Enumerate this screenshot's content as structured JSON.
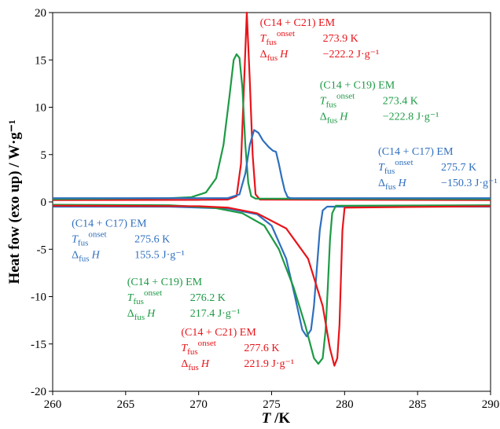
{
  "chart_data": {
    "type": "line",
    "xlabel": "T /K",
    "ylabel": "Heat fow (exo up) / W·g⁻¹",
    "xlim": [
      260,
      290
    ],
    "ylim": [
      -20,
      20
    ],
    "xticks": [
      260,
      265,
      270,
      275,
      280,
      285,
      290
    ],
    "yticks": [
      -20,
      -15,
      -10,
      -5,
      0,
      5,
      10,
      15,
      20
    ],
    "grid": false,
    "series": [
      {
        "id": "c14c21-cool",
        "color": "#e8141a",
        "points": [
          [
            260,
            0.2
          ],
          [
            270,
            0.22
          ],
          [
            272,
            0.25
          ],
          [
            272.6,
            0.6
          ],
          [
            272.9,
            4
          ],
          [
            273.1,
            12
          ],
          [
            273.3,
            20
          ],
          [
            273.5,
            13
          ],
          [
            273.7,
            5
          ],
          [
            273.9,
            0.8
          ],
          [
            274.2,
            0.25
          ],
          [
            290,
            0.2
          ]
        ]
      },
      {
        "id": "c14c19-cool",
        "color": "#1d9a45",
        "points": [
          [
            260,
            0.3
          ],
          [
            268,
            0.4
          ],
          [
            269.5,
            0.5
          ],
          [
            270.5,
            1.0
          ],
          [
            271.2,
            2.5
          ],
          [
            271.7,
            6
          ],
          [
            272.1,
            11
          ],
          [
            272.4,
            15
          ],
          [
            272.6,
            15.6
          ],
          [
            272.8,
            15.2
          ],
          [
            273,
            12
          ],
          [
            273.2,
            6
          ],
          [
            273.4,
            2
          ],
          [
            273.6,
            0.6
          ],
          [
            273.9,
            0.35
          ],
          [
            290,
            0.3
          ]
        ]
      },
      {
        "id": "c14c17-cool",
        "color": "#2f6fbe",
        "points": [
          [
            260,
            0.4
          ],
          [
            272,
            0.4
          ],
          [
            272.8,
            0.8
          ],
          [
            273.2,
            3
          ],
          [
            273.5,
            6
          ],
          [
            273.8,
            7.6
          ],
          [
            274.1,
            7.3
          ],
          [
            274.4,
            6.5
          ],
          [
            274.8,
            5.8
          ],
          [
            275.1,
            5.4
          ],
          [
            275.3,
            5.3
          ],
          [
            275.5,
            4
          ],
          [
            275.7,
            2.5
          ],
          [
            275.9,
            1.2
          ],
          [
            276.1,
            0.5
          ],
          [
            276.3,
            0.4
          ],
          [
            290,
            0.4
          ]
        ]
      },
      {
        "id": "c14c17-heat",
        "color": "#2f6fbe",
        "points": [
          [
            260,
            -0.5
          ],
          [
            268,
            -0.5
          ],
          [
            272,
            -0.7
          ],
          [
            274,
            -1.3
          ],
          [
            275,
            -2.5
          ],
          [
            276,
            -6
          ],
          [
            276.6,
            -10
          ],
          [
            277.1,
            -13.5
          ],
          [
            277.4,
            -14.2
          ],
          [
            277.7,
            -13.5
          ],
          [
            277.9,
            -11
          ],
          [
            278.1,
            -7
          ],
          [
            278.3,
            -3
          ],
          [
            278.5,
            -0.9
          ],
          [
            278.8,
            -0.5
          ],
          [
            290,
            -0.5
          ]
        ]
      },
      {
        "id": "c14c19-heat",
        "color": "#1d9a45",
        "points": [
          [
            260,
            -0.3
          ],
          [
            268,
            -0.35
          ],
          [
            271,
            -0.6
          ],
          [
            273,
            -1.2
          ],
          [
            274.5,
            -2.5
          ],
          [
            275.5,
            -5
          ],
          [
            276.5,
            -9
          ],
          [
            277.3,
            -13
          ],
          [
            277.9,
            -16.5
          ],
          [
            278.2,
            -17.1
          ],
          [
            278.5,
            -16.5
          ],
          [
            278.7,
            -13.5
          ],
          [
            278.85,
            -9
          ],
          [
            279,
            -4
          ],
          [
            279.15,
            -1.2
          ],
          [
            279.4,
            -0.4
          ],
          [
            290,
            -0.35
          ]
        ]
      },
      {
        "id": "c14c21-heat",
        "color": "#e8141a",
        "points": [
          [
            260,
            -0.4
          ],
          [
            270,
            -0.45
          ],
          [
            272,
            -0.6
          ],
          [
            274,
            -1.2
          ],
          [
            276,
            -2.8
          ],
          [
            277.5,
            -6
          ],
          [
            278.5,
            -11
          ],
          [
            279,
            -15.5
          ],
          [
            279.3,
            -17.3
          ],
          [
            279.5,
            -16.5
          ],
          [
            279.65,
            -13
          ],
          [
            279.75,
            -8
          ],
          [
            279.85,
            -3
          ],
          [
            280,
            -0.6
          ],
          [
            290,
            -0.45
          ]
        ]
      }
    ],
    "annotations": [
      {
        "color": "#e8141a",
        "x": 274.2,
        "y": 18.6,
        "title": "(C14 + C21) EM",
        "T_label": "T",
        "T_sub": "fus",
        "T_sup": "onset",
        "T_value": "273.9 K",
        "H_label": "Δ",
        "H_sub": "fus",
        "H_italic": "H",
        "H_value": "−222.2 J·g⁻¹"
      },
      {
        "color": "#1d9a45",
        "x": 278.3,
        "y": 12.0,
        "title": "(C14 + C19) EM",
        "T_label": "T",
        "T_sub": "fus",
        "T_sup": "onset",
        "T_value": "273.4 K",
        "H_label": "Δ",
        "H_sub": "fus",
        "H_italic": "H",
        "H_value": "−222.8 J·g⁻¹"
      },
      {
        "color": "#2f6fbe",
        "x": 282.3,
        "y": 5.0,
        "title": "(C14 + C17) EM",
        "T_label": "T",
        "T_sub": "fus",
        "T_sup": "onset",
        "T_value": "275.7 K",
        "H_label": "Δ",
        "H_sub": "fus",
        "H_italic": "H",
        "H_value": "−150.3 J·g⁻¹"
      },
      {
        "color": "#2f6fbe",
        "x": 261.3,
        "y": -2.6,
        "title": "(C14 + C17) EM",
        "T_label": "T",
        "T_sub": "fus",
        "T_sup": "onset",
        "T_value": "275.6 K",
        "H_label": "Δ",
        "H_sub": "fus",
        "H_italic": "H",
        "H_value": "155.5 J·g⁻¹"
      },
      {
        "color": "#1d9a45",
        "x": 265.1,
        "y": -8.8,
        "title": "(C14 + C19) EM",
        "T_label": "T",
        "T_sub": "fus",
        "T_sup": "onset",
        "T_value": "276.2 K",
        "H_label": "Δ",
        "H_sub": "fus",
        "H_italic": "H",
        "H_value": "217.4 J·g⁻¹"
      },
      {
        "color": "#e8141a",
        "x": 268.8,
        "y": -14.1,
        "title": "(C14 + C21) EM",
        "T_label": "T",
        "T_sub": "fus",
        "T_sup": "onset",
        "T_value": "277.6 K",
        "H_label": "Δ",
        "H_sub": "fus",
        "H_italic": "H",
        "H_value": "221.9 J·g⁻¹"
      }
    ]
  }
}
